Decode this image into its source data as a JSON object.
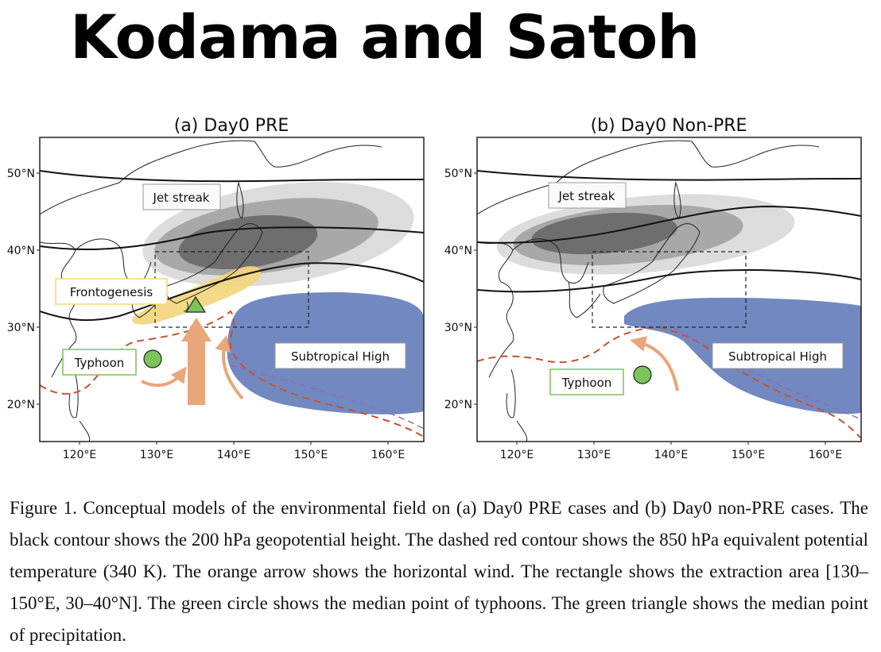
{
  "slide_title": "Kodama and Satoh",
  "figure": {
    "panels": [
      {
        "title": "(a) Day0 PRE",
        "lat_labels": [
          "50°N",
          "40°N",
          "30°N",
          "20°N"
        ],
        "lon_labels": [
          "120°E",
          "130°E",
          "140°E",
          "150°E",
          "160°E"
        ],
        "labels": {
          "jet": "Jet streak",
          "front": "Frontogenesis",
          "typhoon": "Typhoon",
          "high": "Subtropical High"
        }
      },
      {
        "title": "(b) Day0 Non-PRE",
        "lat_labels": [
          "50°N",
          "40°N",
          "30°N",
          "20°N"
        ],
        "lon_labels": [
          "120°E",
          "130°E",
          "140°E",
          "150°E",
          "160°E"
        ],
        "labels": {
          "jet": "Jet streak",
          "typhoon": "Typhoon",
          "high": "Subtropical High"
        }
      }
    ],
    "colors": {
      "subtropical_high": "#7189c0",
      "jet_dark": "#6e6e6e",
      "jet_mid": "#a8a8a8",
      "jet_light": "#dcdcdc",
      "front": "#f3d57a",
      "arrow": "#e9a679",
      "theta_e_contour": "#c8502e",
      "typhoon_marker": "#7cc35a"
    }
  },
  "caption": "Figure 1. Conceptual models of the environmental field on (a) Day0 PRE cases and (b) Day0 non-PRE cases. The black contour shows the 200 hPa geopotential height. The dashed red contour shows the 850 hPa equivalent potential temperature (340 K). The orange arrow shows the horizontal wind. The rectangle shows the extraction area [130–150°E, 30–40°N]. The green circle shows the median point of typhoons. The green triangle shows the median point of precipitation."
}
